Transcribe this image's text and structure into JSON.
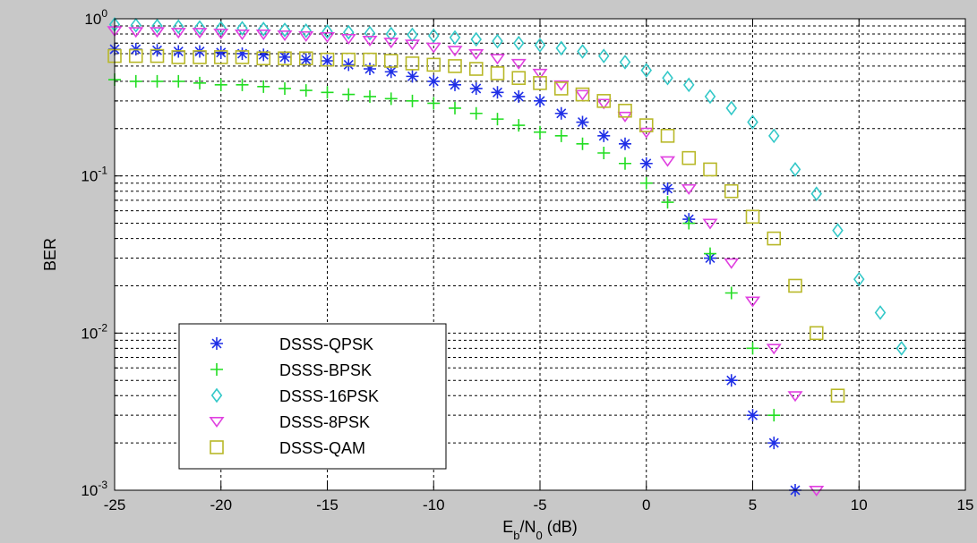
{
  "chart_data": {
    "type": "scatter",
    "xlabel": "E_b/N_0 (dB)",
    "xlabel_parts": {
      "main1": "E",
      "sub1": "b",
      "main2": "/N",
      "sub2": "0",
      "rest": " (dB)"
    },
    "ylabel": "BER",
    "xlim": [
      -25,
      15
    ],
    "ylim": [
      0.001,
      1
    ],
    "yscale": "log",
    "grid": true,
    "legend_position": "lower-left",
    "x_ticks": [
      -25,
      -20,
      -15,
      -10,
      -5,
      0,
      5,
      10,
      15
    ],
    "x_tick_labels": [
      "-25",
      "-20",
      "-15",
      "-10",
      "-5",
      "0",
      "5",
      "10",
      "15"
    ],
    "y_ticks": [
      {
        "value": 1,
        "base": "10",
        "exp": "0"
      },
      {
        "value": 0.1,
        "base": "10",
        "exp": "-1"
      },
      {
        "value": 0.01,
        "base": "10",
        "exp": "-2"
      },
      {
        "value": 0.001,
        "base": "10",
        "exp": "-3"
      }
    ],
    "series": [
      {
        "name": "DSSS-QPSK",
        "marker": "star",
        "color": "#1f2fe6",
        "x": [
          -25,
          -24,
          -23,
          -22,
          -21,
          -20,
          -19,
          -18,
          -17,
          -16,
          -15,
          -14,
          -13,
          -12,
          -11,
          -10,
          -9,
          -8,
          -7,
          -6,
          -5,
          -4,
          -3,
          -2,
          -1,
          0,
          1,
          2,
          3,
          4,
          5,
          6,
          7
        ],
        "y": [
          0.64,
          0.64,
          0.63,
          0.62,
          0.62,
          0.61,
          0.6,
          0.59,
          0.57,
          0.55,
          0.54,
          0.51,
          0.48,
          0.46,
          0.43,
          0.4,
          0.38,
          0.36,
          0.34,
          0.32,
          0.3,
          0.25,
          0.22,
          0.18,
          0.16,
          0.12,
          0.083,
          0.053,
          0.03,
          0.005,
          0.003,
          0.002,
          0.001
        ]
      },
      {
        "name": "DSSS-BPSK",
        "marker": "plus",
        "color": "#22dd22",
        "x": [
          -25,
          -24,
          -23,
          -22,
          -21,
          -20,
          -19,
          -18,
          -17,
          -16,
          -15,
          -14,
          -13,
          -12,
          -11,
          -10,
          -9,
          -8,
          -7,
          -6,
          -5,
          -4,
          -3,
          -2,
          -1,
          0,
          1,
          2,
          3,
          4,
          5,
          6
        ],
        "y": [
          0.41,
          0.4,
          0.4,
          0.4,
          0.39,
          0.38,
          0.38,
          0.37,
          0.36,
          0.35,
          0.34,
          0.33,
          0.32,
          0.31,
          0.3,
          0.29,
          0.27,
          0.25,
          0.23,
          0.21,
          0.19,
          0.18,
          0.16,
          0.14,
          0.12,
          0.09,
          0.068,
          0.05,
          0.032,
          0.018,
          0.008,
          0.003
        ]
      },
      {
        "name": "DSSS-16PSK",
        "marker": "diamond",
        "color": "#33c8c8",
        "x": [
          -25,
          -24,
          -23,
          -22,
          -21,
          -20,
          -19,
          -18,
          -17,
          -16,
          -15,
          -14,
          -13,
          -12,
          -11,
          -10,
          -9,
          -8,
          -7,
          -6,
          -5,
          -4,
          -3,
          -2,
          -1,
          0,
          1,
          2,
          3,
          4,
          5,
          6,
          7,
          8,
          9,
          10,
          11,
          12
        ],
        "y": [
          0.92,
          0.91,
          0.9,
          0.89,
          0.88,
          0.87,
          0.87,
          0.86,
          0.85,
          0.84,
          0.83,
          0.82,
          0.81,
          0.8,
          0.79,
          0.78,
          0.76,
          0.74,
          0.72,
          0.7,
          0.68,
          0.65,
          0.62,
          0.58,
          0.53,
          0.47,
          0.42,
          0.38,
          0.32,
          0.27,
          0.22,
          0.18,
          0.11,
          0.077,
          0.045,
          0.022,
          0.0135,
          0.008
        ]
      },
      {
        "name": "DSSS-8PSK",
        "marker": "triangle-down",
        "color": "#e040e0",
        "x": [
          -25,
          -24,
          -23,
          -22,
          -21,
          -20,
          -19,
          -18,
          -17,
          -16,
          -15,
          -14,
          -13,
          -12,
          -11,
          -10,
          -9,
          -8,
          -7,
          -6,
          -5,
          -4,
          -3,
          -2,
          -1,
          0,
          1,
          2,
          3,
          4,
          5,
          6,
          7,
          8
        ],
        "y": [
          0.84,
          0.83,
          0.83,
          0.82,
          0.82,
          0.81,
          0.8,
          0.8,
          0.79,
          0.78,
          0.77,
          0.75,
          0.73,
          0.71,
          0.69,
          0.66,
          0.63,
          0.6,
          0.56,
          0.52,
          0.45,
          0.38,
          0.33,
          0.29,
          0.24,
          0.19,
          0.125,
          0.083,
          0.05,
          0.028,
          0.016,
          0.008,
          0.004,
          0.001
        ]
      },
      {
        "name": "DSSS-QAM",
        "marker": "square",
        "color": "#b8b828",
        "x": [
          -25,
          -24,
          -23,
          -22,
          -21,
          -20,
          -19,
          -18,
          -17,
          -16,
          -15,
          -14,
          -13,
          -12,
          -11,
          -10,
          -9,
          -8,
          -7,
          -6,
          -5,
          -4,
          -3,
          -2,
          -1,
          0,
          1,
          2,
          3,
          4,
          5,
          6,
          7,
          8,
          9
        ],
        "y": [
          0.58,
          0.58,
          0.58,
          0.57,
          0.57,
          0.57,
          0.57,
          0.56,
          0.56,
          0.56,
          0.55,
          0.55,
          0.55,
          0.54,
          0.52,
          0.51,
          0.5,
          0.48,
          0.45,
          0.42,
          0.39,
          0.36,
          0.33,
          0.3,
          0.26,
          0.21,
          0.18,
          0.13,
          0.11,
          0.08,
          0.055,
          0.04,
          0.02,
          0.01,
          0.004
        ]
      }
    ]
  }
}
